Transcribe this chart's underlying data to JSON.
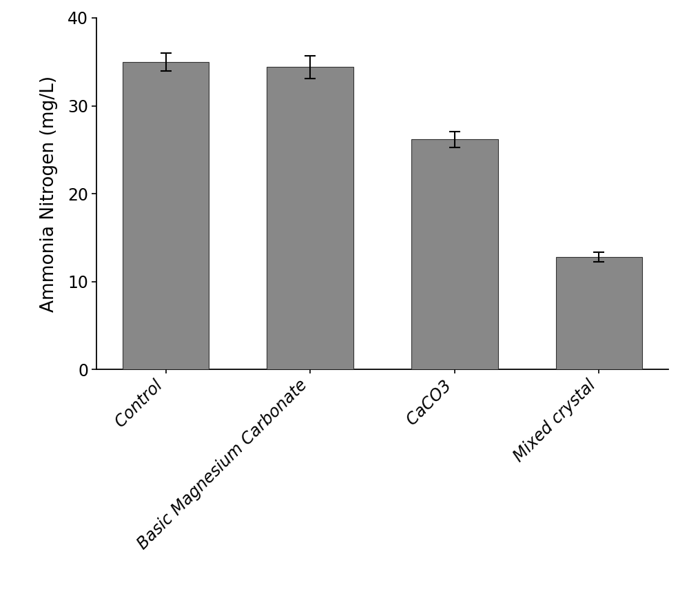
{
  "categories": [
    "Control",
    "Basic Magnesium Carbonate",
    "CaCO3",
    "Mixed crystal"
  ],
  "values": [
    35.0,
    34.4,
    26.2,
    12.8
  ],
  "errors": [
    1.0,
    1.3,
    0.9,
    0.55
  ],
  "bar_color": "#888888",
  "bar_width": 0.6,
  "ylabel": "Ammonia Nitrogen (mg/L)",
  "ylim": [
    0,
    40
  ],
  "yticks": [
    0,
    10,
    20,
    30,
    40
  ],
  "background_color": "#ffffff",
  "ylabel_fontsize": 19,
  "tick_fontsize": 17,
  "xtick_fontsize": 17,
  "error_capsize": 6,
  "error_linewidth": 1.5,
  "error_capthick": 1.5,
  "spine_linewidth": 1.3
}
